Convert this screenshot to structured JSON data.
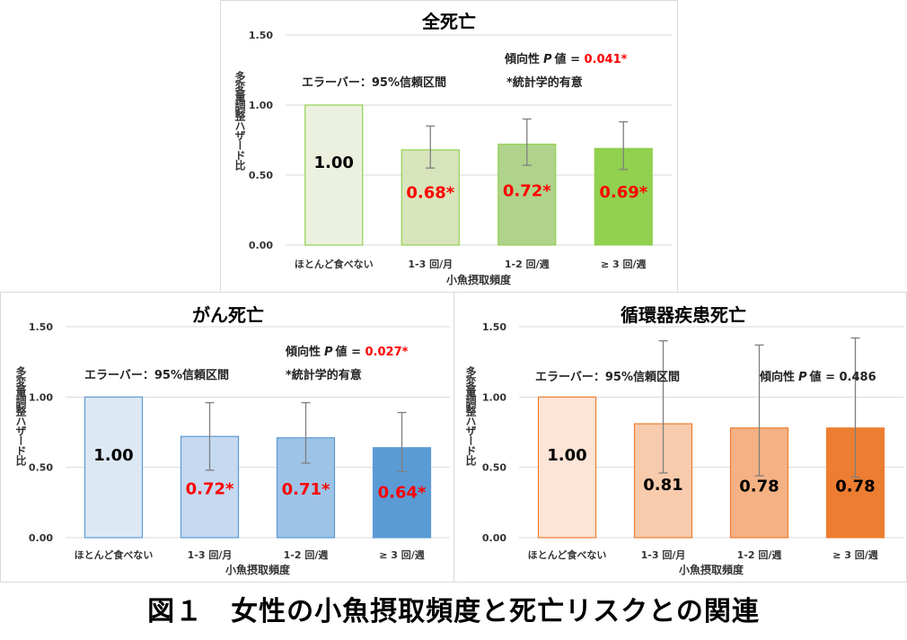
{
  "figure_caption": "図１　女性の小魚摂取頻度と死亡リスクとの関連",
  "chart_data": [
    {
      "type": "bar",
      "title": "全死亡",
      "ylabel": "多変量調整ハザード比",
      "xlabel": "小魚摂取頻度",
      "categories": [
        "ほとんど食べない",
        "1-3 回/月",
        "1-2 回/週",
        "≥ 3 回/週"
      ],
      "values": [
        1.0,
        0.68,
        0.72,
        0.69
      ],
      "value_labels": [
        "1.00",
        "0.68*",
        "0.72*",
        "0.69*"
      ],
      "ci_lower": [
        null,
        0.55,
        0.57,
        0.54
      ],
      "ci_upper": [
        null,
        0.85,
        0.9,
        0.88
      ],
      "significant": [
        false,
        true,
        true,
        true
      ],
      "ylim": [
        0,
        1.5
      ],
      "yticks": [
        "0.00",
        "0.50",
        "1.00",
        "1.50"
      ],
      "errorbar_note": "エラーバー：95%信頼区間",
      "trend_label": "傾向性",
      "trend_p_symbol": "P",
      "trend_value_prefix": "値 = ",
      "trend_value": "0.041*",
      "trend_significant": true,
      "sig_note": "*統計学的有意",
      "colors": {
        "fills": [
          "#ebf1de",
          "#d8e4bc",
          "#b0d38c",
          "#92d050"
        ],
        "stroke": "#92d050"
      }
    },
    {
      "type": "bar",
      "title": "がん死亡",
      "ylabel": "多変量調整ハザード比",
      "xlabel": "小魚摂取頻度",
      "categories": [
        "ほとんど食べない",
        "1-3 回/月",
        "1-2 回/週",
        "≥ 3 回/週"
      ],
      "values": [
        1.0,
        0.72,
        0.71,
        0.64
      ],
      "value_labels": [
        "1.00",
        "0.72*",
        "0.71*",
        "0.64*"
      ],
      "ci_lower": [
        null,
        0.48,
        0.53,
        0.47
      ],
      "ci_upper": [
        null,
        0.96,
        0.96,
        0.89
      ],
      "significant": [
        false,
        true,
        true,
        true
      ],
      "ylim": [
        0,
        1.5
      ],
      "yticks": [
        "0.00",
        "0.50",
        "1.00",
        "1.50"
      ],
      "errorbar_note": "エラーバー：95%信頼区間",
      "trend_label": "傾向性",
      "trend_p_symbol": "P",
      "trend_value_prefix": "値 = ",
      "trend_value": "0.027*",
      "trend_significant": true,
      "sig_note": "*統計学的有意",
      "colors": {
        "fills": [
          "#dde8f5",
          "#c5d9f1",
          "#9dc3e6",
          "#5b9bd5"
        ],
        "stroke": "#5b9bd5"
      }
    },
    {
      "type": "bar",
      "title": "循環器疾患死亡",
      "ylabel": "多変量調整ハザード比",
      "xlabel": "小魚摂取頻度",
      "categories": [
        "ほとんど食べない",
        "1-3 回/月",
        "1-2 回/週",
        "≥ 3 回/週"
      ],
      "values": [
        1.0,
        0.81,
        0.78,
        0.78
      ],
      "value_labels": [
        "1.00",
        "0.81",
        "0.78",
        "0.78"
      ],
      "ci_lower": [
        null,
        0.46,
        0.44,
        0.43
      ],
      "ci_upper": [
        null,
        1.4,
        1.37,
        1.42
      ],
      "significant": [
        false,
        false,
        false,
        false
      ],
      "ylim": [
        0,
        1.5
      ],
      "yticks": [
        "0.00",
        "0.50",
        "1.00",
        "1.50"
      ],
      "errorbar_note": "エラーバー：95%信頼区間",
      "trend_label": "傾向性",
      "trend_p_symbol": "P",
      "trend_value_prefix": "値 = ",
      "trend_value": "0.486",
      "trend_significant": false,
      "sig_note": "",
      "colors": {
        "fills": [
          "#fce4d6",
          "#f8cbad",
          "#f4b183",
          "#ed7d31"
        ],
        "stroke": "#ed7d31"
      }
    }
  ]
}
